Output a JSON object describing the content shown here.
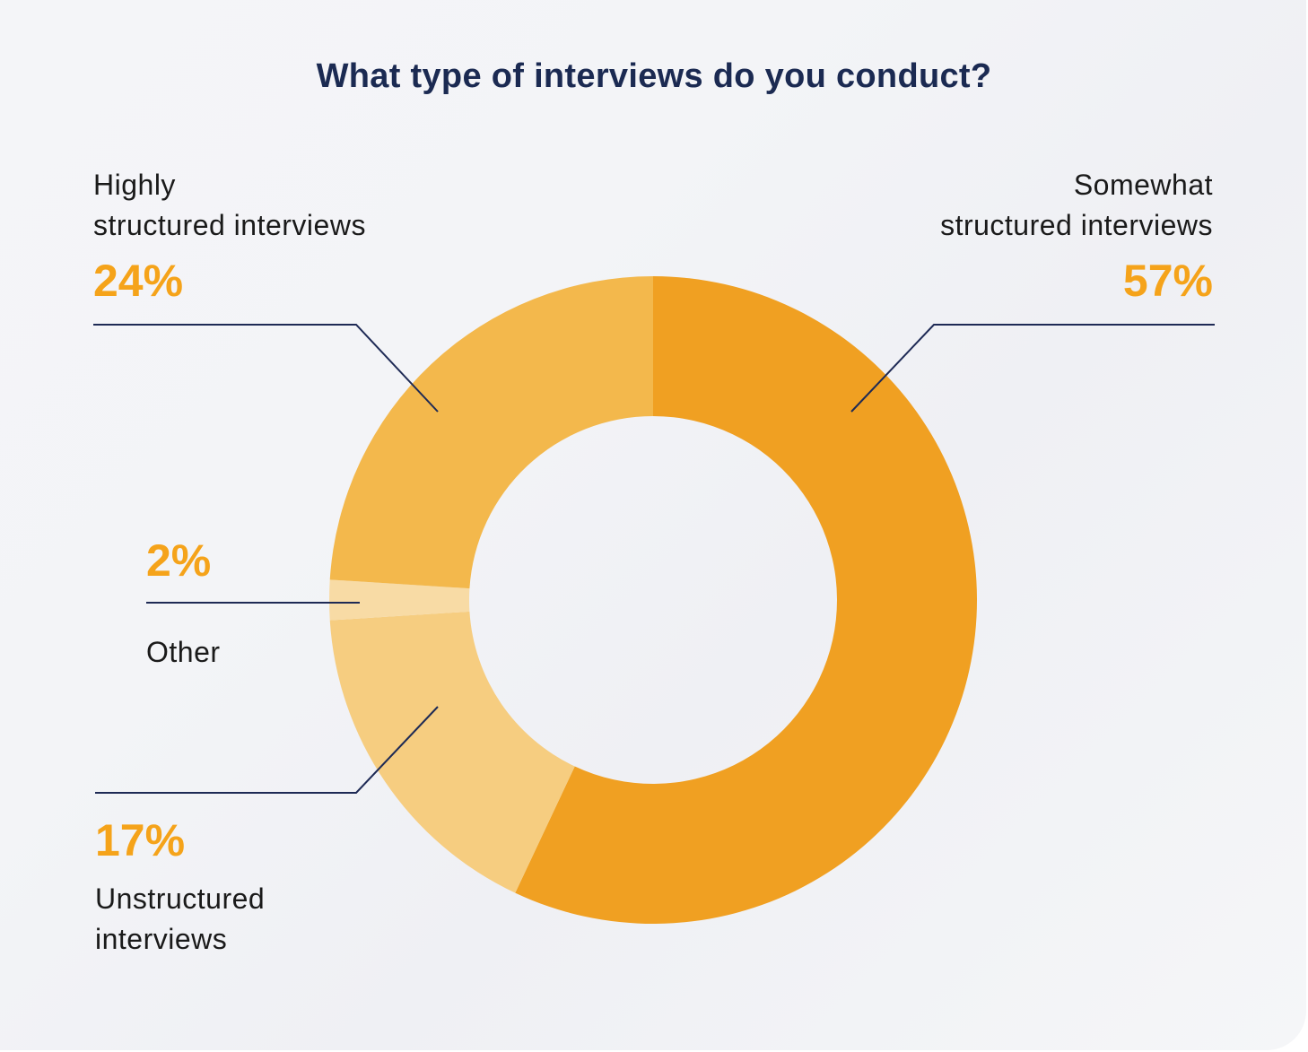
{
  "chart_data": {
    "type": "pie",
    "subtype": "donut",
    "title": "What type of interviews do you conduct?",
    "categories": [
      "Somewhat structured interviews",
      "Unstructured interviews",
      "Other",
      "Highly structured interviews"
    ],
    "values": [
      57,
      17,
      2,
      24
    ],
    "unit": "%",
    "colors": [
      "#f0a022",
      "#f6cd80",
      "#f8dba5",
      "#f3b84c"
    ],
    "start_angle": "12 o'clock, clockwise",
    "legend": "callout labels with leader lines"
  },
  "title": "What type of interviews do you conduct?",
  "labels": {
    "highly": {
      "line1": "Highly",
      "line2": "structured interviews",
      "pct": "24%"
    },
    "somewhat": {
      "line1": "Somewhat",
      "line2": "structured interviews",
      "pct": "57%"
    },
    "other": {
      "name": "Other",
      "pct": "2%"
    },
    "unstructured": {
      "line1": "Unstructured",
      "line2": "interviews",
      "pct": "17%"
    }
  },
  "colors": {
    "accent": "#f5a31a",
    "title": "#1b2a52",
    "leader_line": "#1e2a55"
  }
}
